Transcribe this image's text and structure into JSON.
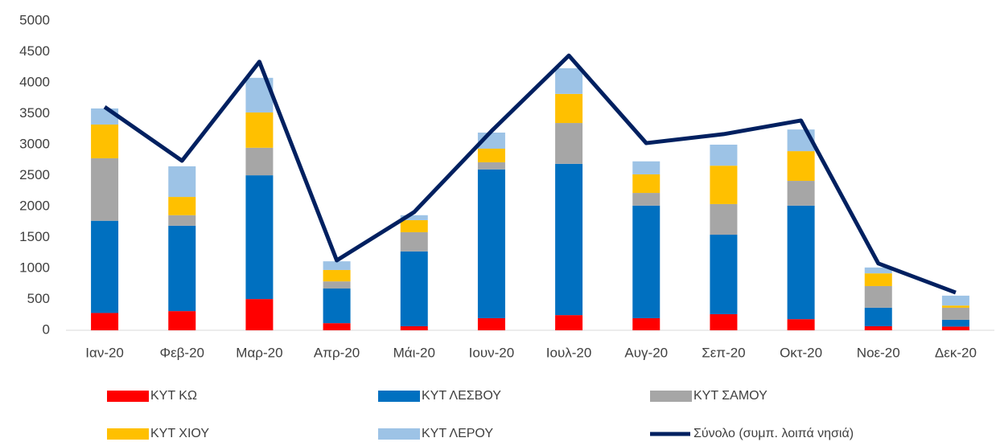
{
  "chart_data": {
    "type": "bar",
    "stacked": true,
    "categories": [
      "Ιαν-20",
      "Φεβ-20",
      "Μαρ-20",
      "Απρ-20",
      "Μάι-20",
      "Ιουν-20",
      "Ιουλ-20",
      "Αυγ-20",
      "Σεπ-20",
      "Οκτ-20",
      "Νοε-20",
      "Δεκ-20"
    ],
    "series": [
      {
        "name": "ΚΥΤ ΚΩ",
        "color": "#ff0000",
        "values": [
          280,
          310,
          505,
          115,
          65,
          195,
          245,
          195,
          260,
          180,
          65,
          60
        ]
      },
      {
        "name": "ΚΥΤ ΛΕΣΒΟΥ",
        "color": "#0070c0",
        "values": [
          1490,
          1380,
          2000,
          560,
          1210,
          2405,
          2445,
          1820,
          1285,
          1835,
          300,
          110
        ]
      },
      {
        "name": "ΚΥΤ ΣΑΜΟΥ",
        "color": "#a6a6a6",
        "values": [
          1010,
          170,
          445,
          115,
          310,
          115,
          660,
          205,
          495,
          400,
          350,
          195
        ]
      },
      {
        "name": "ΚΥΤ ΧΙΟΥ",
        "color": "#ffc000",
        "values": [
          545,
          295,
          570,
          185,
          195,
          220,
          470,
          300,
          620,
          480,
          205,
          35
        ]
      },
      {
        "name": "ΚΥΤ ΛΕΡΟΥ",
        "color": "#9dc3e6",
        "values": [
          260,
          495,
          560,
          140,
          80,
          260,
          415,
          210,
          340,
          350,
          95,
          160
        ]
      },
      {
        "name": "Σύνολο (συμπ. λοιπά νησιά)",
        "color": "#002060",
        "type": "line",
        "values": [
          3610,
          2740,
          4340,
          1130,
          1910,
          3220,
          4440,
          3025,
          3170,
          3390,
          1080,
          610
        ]
      }
    ],
    "ylim": [
      0,
      5000
    ],
    "yticks": [
      0,
      500,
      1000,
      1500,
      2000,
      2500,
      3000,
      3500,
      4000,
      4500,
      5000
    ],
    "grid": false,
    "legend": "bottom"
  }
}
